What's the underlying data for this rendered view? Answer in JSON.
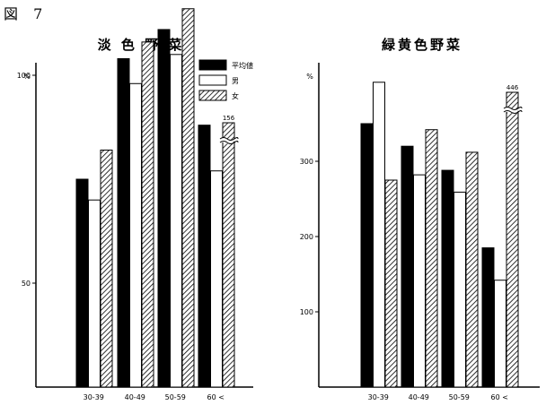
{
  "figure_label": "図 7",
  "legend": {
    "position": "top-right of left panel",
    "items": [
      {
        "key": "avg",
        "label": "平均値",
        "fill": "solid"
      },
      {
        "key": "male",
        "label": "男",
        "fill": "white"
      },
      {
        "key": "female",
        "label": "女",
        "fill": "hatched"
      }
    ]
  },
  "chart_data": [
    {
      "type": "bar",
      "title": "淡 色 野 菜",
      "ylabel": "%",
      "ylim": [
        25,
        145
      ],
      "yticks": [
        50,
        100
      ],
      "categories": [
        "30-39",
        "40-49",
        "50-59",
        "60 <"
      ],
      "series": [
        {
          "name": "平均値",
          "key": "avg",
          "values": [
            75,
            104,
            111,
            88
          ]
        },
        {
          "name": "男",
          "key": "male",
          "values": [
            70,
            98,
            105,
            77
          ]
        },
        {
          "name": "女",
          "key": "female",
          "values": [
            82,
            108,
            116,
            156
          ]
        }
      ],
      "axis_break": {
        "series": "女",
        "category": "60 <",
        "label": "156"
      }
    },
    {
      "type": "bar",
      "title": "緑黄色野菜",
      "ylabel": "%",
      "ylim": [
        0,
        420
      ],
      "yticks": [
        100,
        200,
        300
      ],
      "categories": [
        "30-39",
        "40-49",
        "50-59",
        "60 <"
      ],
      "series": [
        {
          "name": "平均値",
          "key": "avg",
          "values": [
            350,
            320,
            288,
            185
          ]
        },
        {
          "name": "男",
          "key": "male",
          "values": [
            405,
            282,
            259,
            142
          ]
        },
        {
          "name": "女",
          "key": "female",
          "values": [
            275,
            342,
            312,
            446
          ]
        }
      ],
      "axis_break": {
        "series": "女",
        "category": "60 <",
        "label": "446"
      }
    }
  ]
}
